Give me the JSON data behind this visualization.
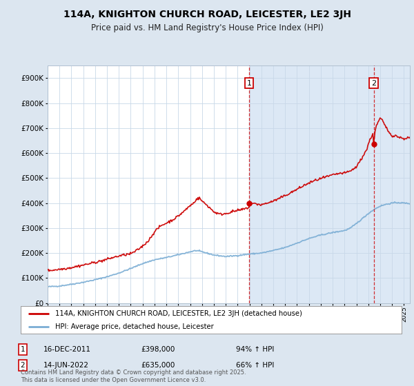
{
  "title": "114A, KNIGHTON CHURCH ROAD, LEICESTER, LE2 3JH",
  "subtitle": "Price paid vs. HM Land Registry's House Price Index (HPI)",
  "legend_label_red": "114A, KNIGHTON CHURCH ROAD, LEICESTER, LE2 3JH (detached house)",
  "legend_label_blue": "HPI: Average price, detached house, Leicester",
  "annotation1_date": "16-DEC-2011",
  "annotation1_price": "£398,000",
  "annotation1_hpi": "94% ↑ HPI",
  "annotation2_date": "14-JUN-2022",
  "annotation2_price": "£635,000",
  "annotation2_hpi": "66% ↑ HPI",
  "footer": "Contains HM Land Registry data © Crown copyright and database right 2025.\nThis data is licensed under the Open Government Licence v3.0.",
  "bg_color": "#dce6f0",
  "plot_bg_color": "#ffffff",
  "shade_color": "#dce8f5",
  "red_color": "#cc0000",
  "blue_color": "#7aadd4",
  "vline_color": "#cc0000",
  "grid_color": "#c8d8e8",
  "ylim": [
    0,
    950000
  ],
  "ytick_values": [
    0,
    100000,
    200000,
    300000,
    400000,
    500000,
    600000,
    700000,
    800000,
    900000
  ],
  "sale1_year": 2011.96,
  "sale1_price": 398000,
  "sale2_year": 2022.45,
  "sale2_price": 635000,
  "xmin": 1995,
  "xmax": 2025.5
}
